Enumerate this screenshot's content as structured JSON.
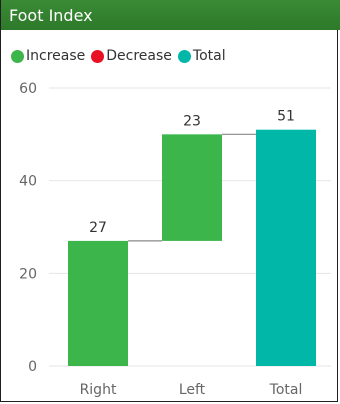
{
  "title": "Foot Index",
  "legend": [
    {
      "label": "Increase",
      "color": "#3cb54a"
    },
    {
      "label": "Decrease",
      "color": "#e81123"
    },
    {
      "label": "Total",
      "color": "#00b7a8"
    }
  ],
  "chart_data": {
    "type": "bar",
    "subtype": "waterfall",
    "title": "Foot Index",
    "categories": [
      "Right",
      "Left",
      "Total"
    ],
    "values": [
      27,
      23,
      51
    ],
    "kinds": [
      "increase",
      "increase",
      "total"
    ],
    "data_labels": [
      "27",
      "23",
      "51"
    ],
    "ylim": [
      0,
      60
    ],
    "yticks": [
      0,
      20,
      40,
      60
    ],
    "grid": true,
    "legend_position": "top-left",
    "colors": {
      "increase": "#3cb54a",
      "decrease": "#e81123",
      "total": "#00b7a8"
    }
  }
}
